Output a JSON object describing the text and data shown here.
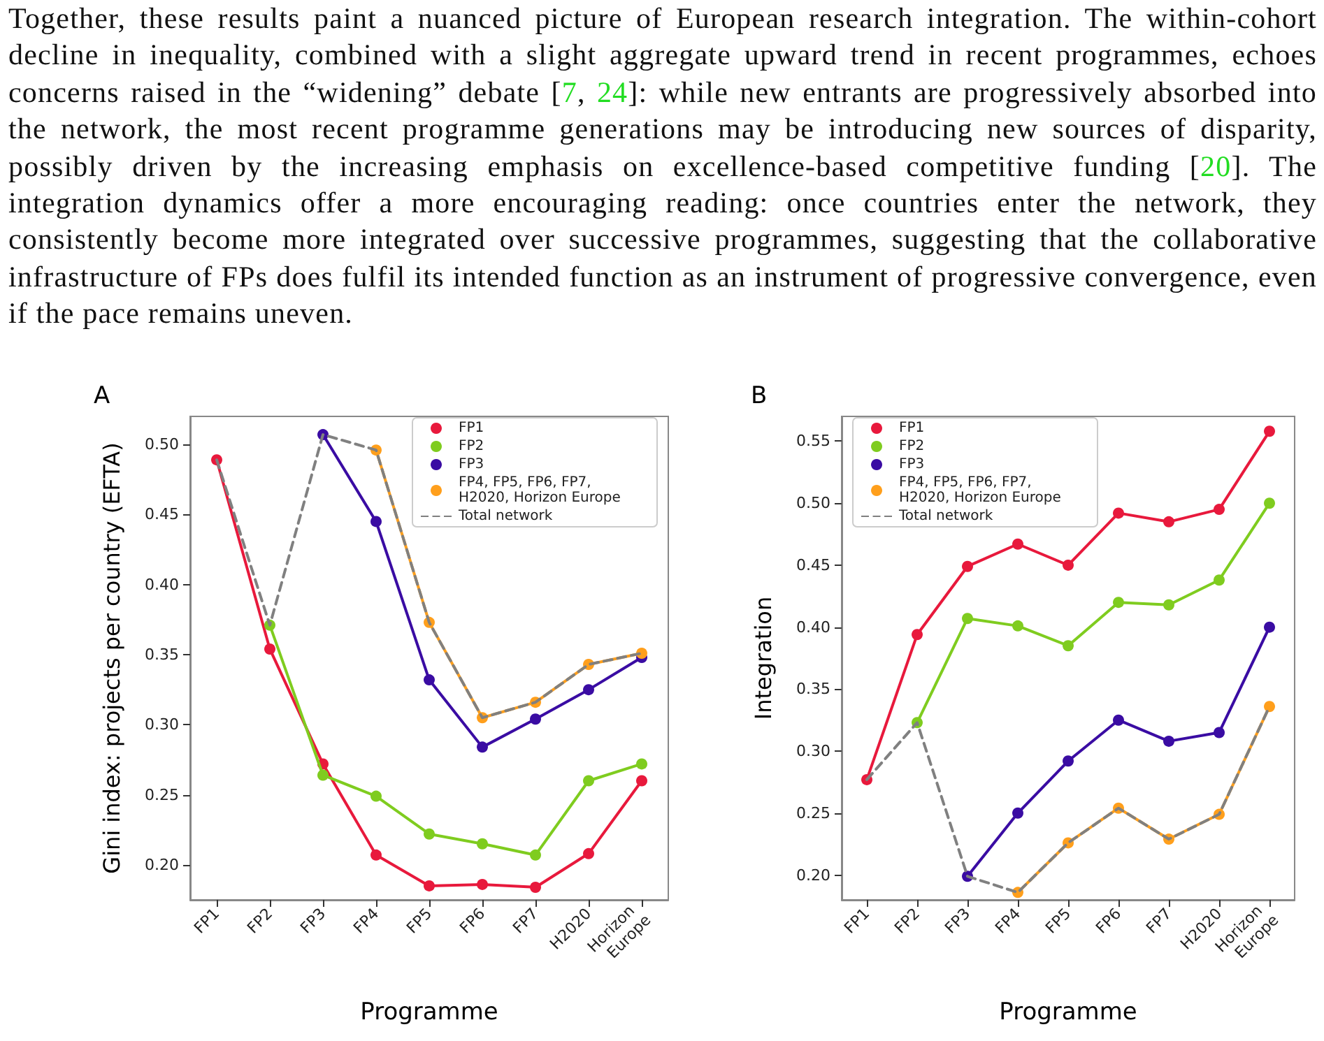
{
  "chart_data": [
    {
      "type": "line",
      "title": "A",
      "xlabel": "Programme",
      "ylabel": "Gini index: projects per country (EFTA)",
      "annotations": [
        "Together, these results paint a nuanced picture of European research integration. The within-cohort decline in inequality, combined with a slight aggregate upward trend in recent programmes, echoes concerns raised in the “widening” debate [7, 24]: while new entrants are progressively absorbed into the network, the most recent programme generations may be introducing new sources of disparity, possibly driven by the increasing emphasis on excellence-based competitive funding [20]. The integration dynamics offer a more encouraging reading: once countries enter the network, they consistently become more integrated over successive programmes, suggesting that the collaborative infrastructure of FPs does fulfil its intended function as an instrument of progressive convergence, even if the pace remains uneven."
      ],
      "categories": [
        "FP1",
        "FP2",
        "FP3",
        "FP4",
        "FP5",
        "FP6",
        "FP7",
        "H2020",
        "Horizon Europe"
      ],
      "series": [
        {
          "name": "FP1",
          "color": "#e8193c",
          "values": [
            0.489,
            0.354,
            0.272,
            0.207,
            0.185,
            0.186,
            0.184,
            0.208,
            0.26
          ]
        },
        {
          "name": "FP2",
          "color": "#7fcc1f",
          "values": [
            null,
            0.371,
            0.264,
            0.249,
            0.222,
            0.215,
            0.207,
            0.26,
            0.272
          ]
        },
        {
          "name": "FP3",
          "color": "#3a0ca3",
          "values": [
            null,
            null,
            0.507,
            0.445,
            0.332,
            0.284,
            0.304,
            0.325,
            0.348
          ]
        },
        {
          "name": "FP4, FP5, FP6, FP7, H2020, Horizon Europe",
          "color": "#ff9f1c",
          "values": [
            null,
            null,
            null,
            0.496,
            0.373,
            0.305,
            0.316,
            0.343,
            0.351
          ]
        },
        {
          "name": "Total network",
          "color": "#808080",
          "marker": "none",
          "line_style": "dashed",
          "values": [
            0.489,
            0.371,
            0.507,
            0.496,
            0.373,
            0.305,
            0.316,
            0.343,
            0.351
          ]
        }
      ],
      "ylim": [
        0.175,
        0.52
      ],
      "yticks": [
        {
          "value": 0.2,
          "label": "0.20"
        },
        0.25,
        {
          "value": 0.3,
          "label": "0.30"
        },
        0.35,
        {
          "value": 0.4,
          "label": "0.40"
        },
        0.45,
        {
          "value": 0.5,
          "label": "0.50"
        }
      ],
      "grid": false,
      "legend": "top right",
      "marker": "circle",
      "line_style": "solid"
    },
    {
      "type": "line",
      "title": "B",
      "xlabel": "Programme",
      "ylabel": "Integration",
      "categories": [
        "FP1",
        "FP2",
        "FP3",
        "FP4",
        "FP5",
        "FP6",
        "FP7",
        "H2020",
        "Horizon Europe"
      ],
      "series": [
        {
          "name": "FP1",
          "color": "#e8193c",
          "values": [
            0.277,
            0.394,
            0.449,
            0.467,
            0.45,
            0.492,
            0.485,
            0.495,
            0.558
          ]
        },
        {
          "name": "FP2",
          "color": "#7fcc1f",
          "values": [
            null,
            0.323,
            0.407,
            0.401,
            0.385,
            0.42,
            0.418,
            0.438,
            0.5
          ]
        },
        {
          "name": "FP3",
          "color": "#3a0ca3",
          "values": [
            null,
            null,
            0.199,
            0.25,
            0.292,
            0.325,
            0.308,
            0.315,
            0.4
          ]
        },
        {
          "name": "FP4, FP5, FP6, FP7, H2020, Horizon Europe",
          "color": "#ff9f1c",
          "values": [
            null,
            null,
            null,
            0.186,
            0.226,
            0.254,
            0.229,
            0.249,
            0.336
          ]
        },
        {
          "name": "Total network",
          "color": "#808080",
          "marker": "none",
          "line_style": "dashed",
          "values": [
            0.277,
            0.323,
            0.199,
            0.186,
            0.226,
            0.254,
            0.229,
            0.249,
            0.336
          ]
        }
      ],
      "ylim": [
        0.18,
        0.57
      ],
      "yticks": [
        {
          "value": 0.2,
          "label": "0.20"
        },
        0.25,
        {
          "value": 0.3,
          "label": "0.30"
        },
        0.35,
        {
          "value": 0.4,
          "label": "0.40"
        },
        0.45,
        {
          "value": 0.5,
          "label": "0.50"
        },
        0.55
      ],
      "grid": false,
      "legend": "top left",
      "marker": "circle",
      "line_style": "solid"
    }
  ]
}
